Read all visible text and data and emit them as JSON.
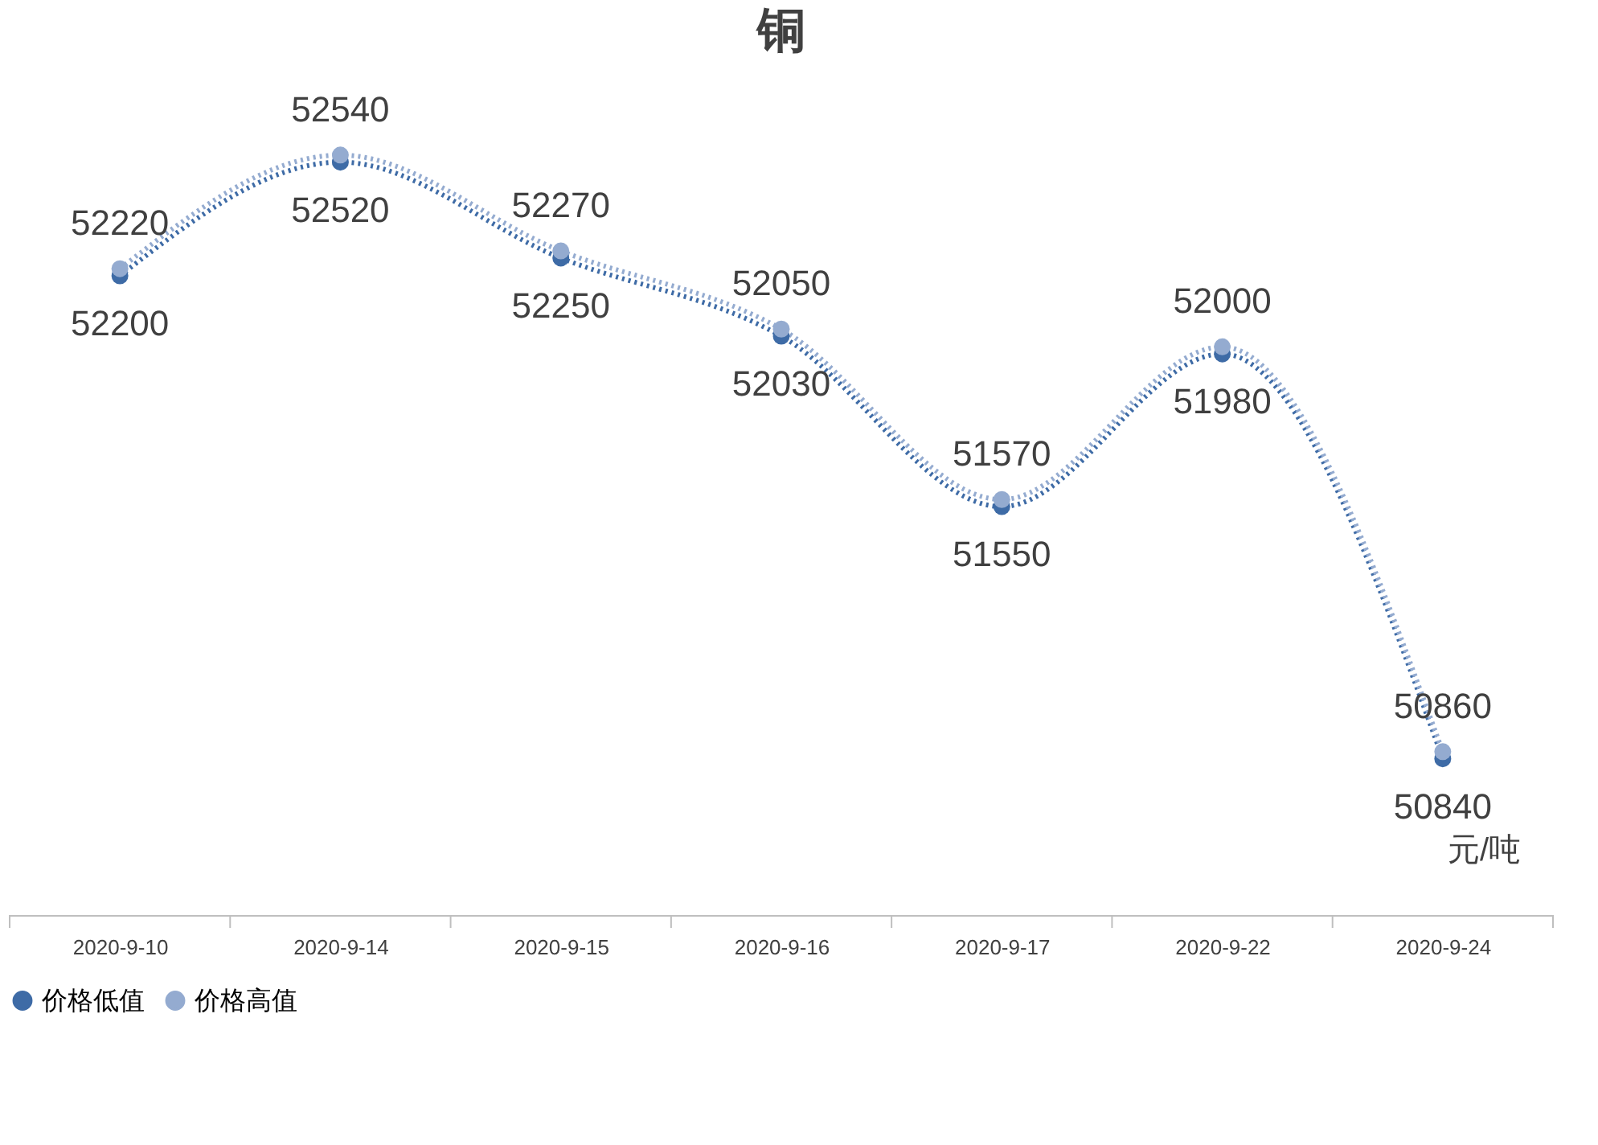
{
  "chart_data": {
    "type": "line",
    "title": "铜",
    "categories": [
      "2020-9-10",
      "2020-9-14",
      "2020-9-15",
      "2020-9-16",
      "2020-9-17",
      "2020-9-22",
      "2020-9-24"
    ],
    "series": [
      {
        "name": "价格低值",
        "color": "#3e6ba6",
        "values": [
          52200,
          52520,
          52250,
          52030,
          51550,
          51980,
          50840
        ]
      },
      {
        "name": "价格高值",
        "color": "#94abd0",
        "values": [
          52220,
          52540,
          52270,
          52050,
          51570,
          52000,
          50860
        ]
      }
    ],
    "annotations": [
      "元/吨"
    ],
    "data_labels": true,
    "legend": "bottom",
    "tick_labels": "x",
    "marker": "circle",
    "line_style": "dotted",
    "grid": false
  }
}
